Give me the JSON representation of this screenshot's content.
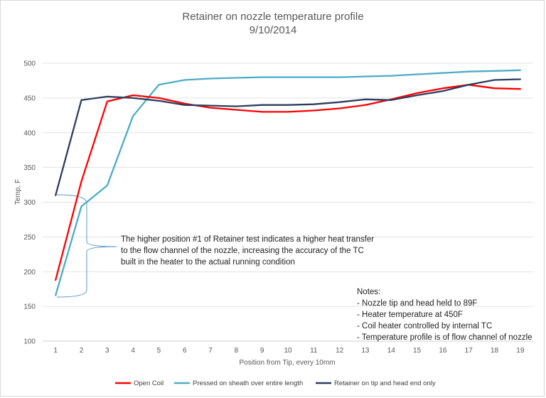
{
  "chart_data": {
    "type": "line",
    "title": "Retainer on nozzle temperature profile",
    "subtitle": "9/10/2014",
    "xlabel": "Position from Tip, every 10mm",
    "ylabel": "Temp, F",
    "x": [
      1,
      2,
      3,
      4,
      5,
      6,
      7,
      8,
      9,
      10,
      11,
      12,
      13,
      14,
      15,
      16,
      17,
      18,
      19
    ],
    "ylim": [
      100,
      500
    ],
    "yticks": [
      100,
      150,
      200,
      250,
      300,
      350,
      400,
      450,
      500
    ],
    "grid": true,
    "legend_position": "bottom",
    "series": [
      {
        "name": "Open Coil",
        "color": "#ff0000",
        "values": [
          188,
          330,
          445,
          454,
          450,
          442,
          436,
          433,
          430,
          430,
          432,
          435,
          440,
          448,
          457,
          464,
          469,
          464,
          463
        ]
      },
      {
        "name": "Pressed on sheath over entire length",
        "color": "#4bacc6",
        "values": [
          166,
          294,
          324,
          424,
          469,
          476,
          478,
          479,
          480,
          480,
          480,
          480,
          481,
          482,
          484,
          486,
          488,
          489,
          490
        ]
      },
      {
        "name": "Retainer on tip and head end only",
        "color": "#2c3e5e",
        "values": [
          310,
          447,
          452,
          450,
          446,
          440,
          439,
          438,
          440,
          440,
          441,
          444,
          448,
          447,
          454,
          460,
          469,
          476,
          477
        ]
      }
    ],
    "annotation": {
      "lines": [
        "The higher position #1 of Retainer test indicates a higher heat transfer",
        "to the flow channel of the nozzle, increasing the accuracy of the TC",
        "built in the heater to the actual running condition"
      ]
    },
    "notes": [
      "Notes:",
      "- Nozzle tip and head held to 89F",
      "- Heater temperature at 450F",
      "- Coil heater controlled by internal TC",
      "- Temperature profile is of flow channel of nozzle"
    ]
  }
}
